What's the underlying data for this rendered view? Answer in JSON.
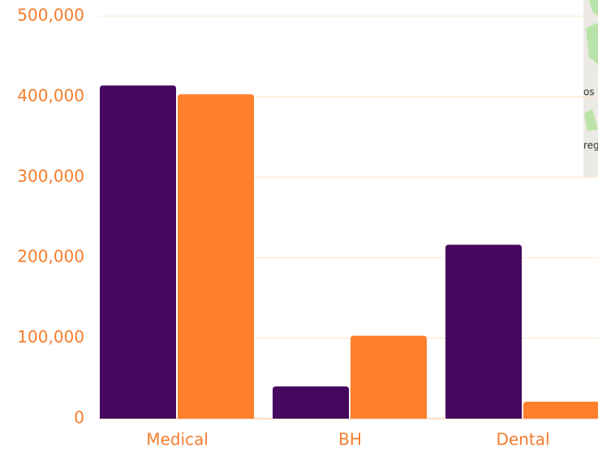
{
  "chart_data": {
    "type": "bar",
    "categories": [
      "Medical",
      "BH",
      "Dental"
    ],
    "series": [
      {
        "color": "#46085e",
        "values": [
          414000,
          40000,
          216000
        ]
      },
      {
        "color": "#fe7f2d",
        "values": [
          403000,
          103000,
          21000
        ]
      }
    ],
    "ylim": [
      0,
      500000
    ],
    "yticks": [
      0,
      {
        "value": 100000,
        "label": "100,000"
      },
      {
        "value": 200000,
        "label": "200,000"
      },
      {
        "value": 300000,
        "label": "300,000"
      },
      {
        "value": 400000,
        "label": "400,000"
      },
      {
        "value": 500000,
        "label": "500,000"
      }
    ],
    "grid": true
  },
  "map_fragment": {
    "labels": [
      "os",
      "reg"
    ]
  }
}
